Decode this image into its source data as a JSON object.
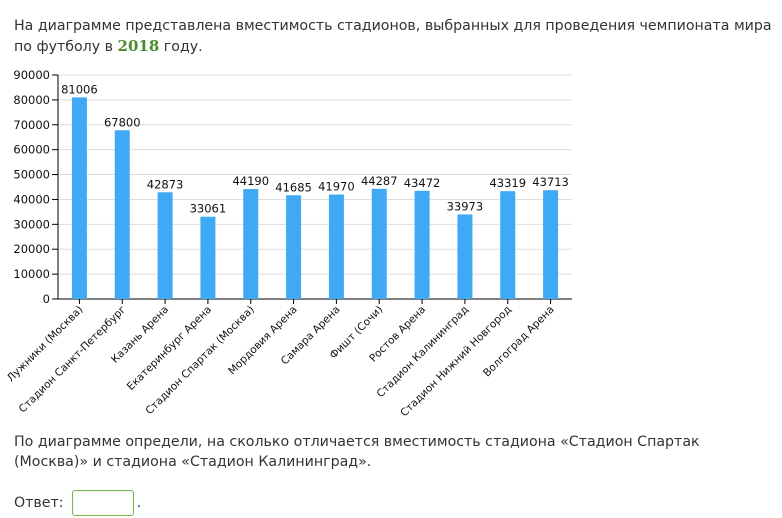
{
  "intro": {
    "text_before": "На диаграмме представлена вместимость стадионов, выбранных для проведения чемпионата мира по футболу в ",
    "year": "2018",
    "text_after": " году."
  },
  "chart_data": {
    "type": "bar",
    "title": "",
    "xlabel": "",
    "ylabel": "",
    "ylim": [
      0,
      90000
    ],
    "yticks": [
      "0",
      "10000",
      "20000",
      "30000",
      "40000",
      "50000",
      "60000",
      "70000",
      "80000",
      "90000"
    ],
    "grid": true,
    "bar_color": "#3fa9f5",
    "categories": [
      "Лужники (Москва)",
      "Стадион Санкт-Петербург",
      "Казань Арена",
      "Екатеринбург Арена",
      "Стадион Спартак (Москва)",
      "Мордовия Арена",
      "Самара Арена",
      "Фишт (Сочи)",
      "Ростов Арена",
      "Стадион Калининград",
      "Стадион Нижний Новгород",
      "Волгоград Арена"
    ],
    "values": [
      81006,
      67800,
      42873,
      33061,
      44190,
      41685,
      41970,
      44287,
      43472,
      33973,
      43319,
      43713
    ]
  },
  "question": {
    "text": "По диаграмме определи, на сколько  отличается вместимость стадиона «Стадион Спартак (Москва)» и стадиона «Стадион Калининград»."
  },
  "answer": {
    "label": "Ответ:",
    "value": "",
    "suffix": "."
  }
}
